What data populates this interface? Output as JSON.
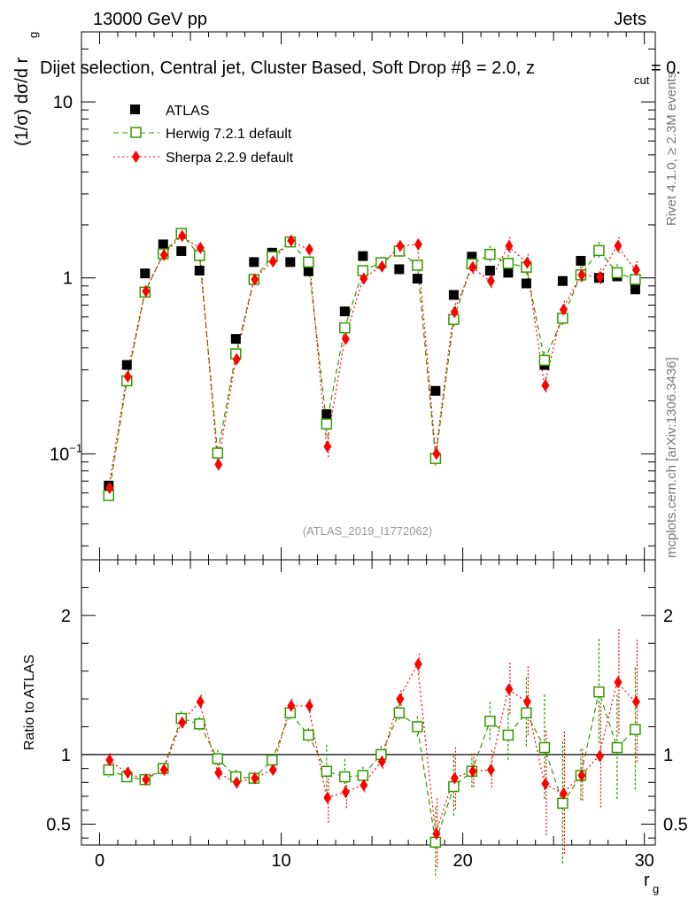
{
  "header": {
    "left": "13000 GeV pp",
    "right": "Jets",
    "title": "Dijet selection, Central jet, Cluster Based, Soft Drop #β = 2.0, z",
    "title_sub": "cut",
    "title_tail": " = 0.",
    "side_top": "Rivet 4.1.0, ≥ 2.3M events",
    "side_bottom": "mcplots.cern.ch [arXiv:1306.3436]",
    "watermark": "(ATLAS_2019_I1772062)"
  },
  "legend": [
    {
      "name": "ATLAS"
    },
    {
      "name": "Herwig 7.2.1 default"
    },
    {
      "name": "Sherpa 2.2.9 default"
    }
  ],
  "colors": {
    "atlas": "#000000",
    "herwig": "#339900",
    "sherpa": "#ff0000"
  },
  "chart_data": [
    {
      "type": "scatter",
      "title": "",
      "xlabel": "r",
      "xlabel_sub": "g",
      "ylabel": "(1/σ) dσ/d r",
      "ylabel_sub": "g",
      "yscale": "log",
      "xlim": [
        -1,
        30.6
      ],
      "ylim": [
        0.025,
        25
      ],
      "yticks": [
        {
          "v": 0.1,
          "base": "10",
          "exp": "−1"
        },
        {
          "v": 1,
          "base": "1",
          "exp": ""
        },
        {
          "v": 10,
          "base": "10",
          "exp": ""
        }
      ],
      "x": [
        0.5,
        1.5,
        2.5,
        3.5,
        4.5,
        5.5,
        6.5,
        7.5,
        8.5,
        9.5,
        10.5,
        11.5,
        12.5,
        13.5,
        14.5,
        15.5,
        16.5,
        17.5,
        18.5,
        19.5,
        20.5,
        21.5,
        22.5,
        23.5,
        24.5,
        25.5,
        26.5,
        27.5,
        28.5,
        29.5
      ],
      "series": [
        {
          "name": "ATLAS",
          "values": [
            0.066,
            0.32,
            1.06,
            1.55,
            1.42,
            1.1,
            0.101,
            0.45,
            1.23,
            1.39,
            1.23,
            1.09,
            0.168,
            0.645,
            1.33,
            1.22,
            1.12,
            0.99,
            0.228,
            0.8,
            1.32,
            1.1,
            1.07,
            0.93,
            0.32,
            0.96,
            1.25,
            1.0,
            1.02,
            0.86
          ]
        },
        {
          "name": "Herwig 7.2.1 default",
          "values": [
            0.058,
            0.26,
            0.83,
            1.37,
            1.79,
            1.34,
            0.101,
            0.37,
            0.98,
            1.32,
            1.6,
            1.23,
            0.148,
            0.52,
            1.1,
            1.22,
            1.42,
            1.18,
            0.094,
            0.58,
            1.2,
            1.36,
            1.21,
            1.15,
            0.34,
            0.59,
            1.04,
            1.43,
            1.07,
            0.98
          ]
        },
        {
          "name": "Sherpa 2.2.9 default",
          "values": [
            0.064,
            0.275,
            0.84,
            1.35,
            1.73,
            1.48,
            0.087,
            0.345,
            0.98,
            1.24,
            1.63,
            1.45,
            0.11,
            0.45,
            0.99,
            1.16,
            1.52,
            1.55,
            0.1,
            0.64,
            1.15,
            0.96,
            1.52,
            1.22,
            0.245,
            0.66,
            1.04,
            1.01,
            1.52,
            1.11
          ]
        }
      ]
    },
    {
      "type": "scatter",
      "title": "",
      "xlabel": "r",
      "xlabel_sub": "g",
      "ylabel": "Ratio to ATLAS",
      "xlim": [
        -1,
        30.6
      ],
      "ylim": [
        0.35,
        2.4
      ],
      "yticks": [
        0.5,
        1,
        2
      ],
      "xticks": [
        0,
        10,
        20,
        30
      ],
      "x": [
        0.5,
        1.5,
        2.5,
        3.5,
        4.5,
        5.5,
        6.5,
        7.5,
        8.5,
        9.5,
        10.5,
        11.5,
        12.5,
        13.5,
        14.5,
        15.5,
        16.5,
        17.5,
        18.5,
        19.5,
        20.5,
        21.5,
        22.5,
        23.5,
        24.5,
        25.5,
        26.5,
        27.5,
        28.5,
        29.5
      ],
      "series": [
        {
          "name": "Herwig 7.2.1 default",
          "values": [
            0.89,
            0.84,
            0.82,
            0.9,
            1.26,
            1.22,
            0.97,
            0.84,
            0.83,
            0.96,
            1.3,
            1.14,
            0.88,
            0.84,
            0.85,
            1.0,
            1.3,
            1.2,
            0.37,
            0.77,
            0.88,
            1.24,
            1.14,
            1.3,
            1.05,
            0.65,
            0.85,
            1.45,
            1.05,
            1.18
          ]
        },
        {
          "name": "Sherpa 2.2.9 default",
          "values": [
            0.96,
            0.87,
            0.82,
            0.89,
            1.23,
            1.38,
            0.87,
            0.8,
            0.83,
            0.89,
            1.35,
            1.35,
            0.69,
            0.73,
            0.78,
            0.95,
            1.4,
            1.65,
            0.43,
            0.83,
            0.88,
            0.89,
            1.47,
            1.38,
            0.79,
            0.72,
            0.85,
            0.99,
            1.52,
            1.38
          ]
        }
      ]
    }
  ]
}
